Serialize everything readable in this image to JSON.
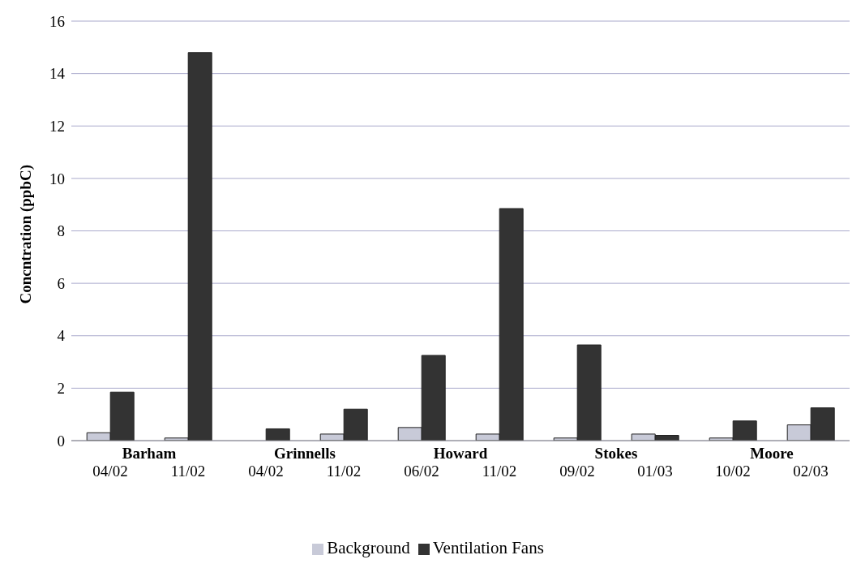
{
  "chart_data": {
    "type": "bar",
    "ylabel": "Concntration (ppbC)",
    "categories": [
      "04/02",
      "11/02",
      "04/02",
      "11/02",
      "06/02",
      "11/02",
      "09/02",
      "01/03",
      "10/02",
      "02/03"
    ],
    "series": [
      {
        "name": "Background",
        "color": "#c8cad8",
        "values": [
          0.3,
          0.1,
          null,
          0.25,
          0.5,
          0.25,
          0.1,
          0.25,
          0.1,
          0.6
        ]
      },
      {
        "name": "Ventilation Fans",
        "color": "#333333",
        "values": [
          1.85,
          14.8,
          0.45,
          1.2,
          3.25,
          8.85,
          3.65,
          0.2,
          0.75,
          1.25
        ]
      }
    ],
    "annotations": [
      "Barham",
      "Grinnells",
      "Howard",
      "Stokes",
      "Moore"
    ],
    "ylim": [
      0,
      16
    ],
    "yticks": [
      0,
      2,
      4,
      6,
      8,
      10,
      12,
      14,
      16
    ],
    "grid": "y",
    "legend": "bottom"
  }
}
